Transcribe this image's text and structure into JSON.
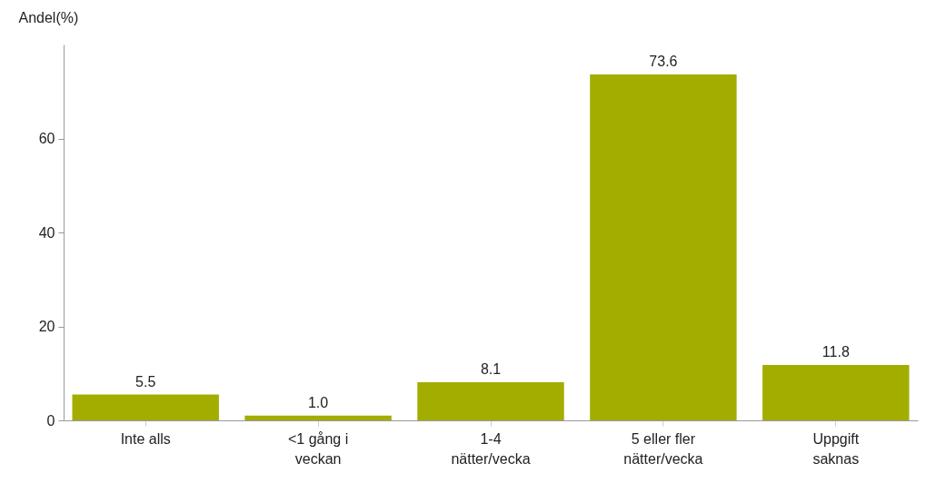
{
  "chart_data": {
    "type": "bar",
    "ylabel": "Andel(%)",
    "categories": [
      "Inte alls",
      "<1 gång i\nveckan",
      "1-4\nnätter/vecka",
      "5 eller fler\nnätter/vecka",
      "Uppgift\nsaknas"
    ],
    "values": [
      5.5,
      1.0,
      8.1,
      73.6,
      11.8
    ],
    "color": "#a2ad00",
    "value_labels": [
      "5.5",
      "1.0",
      "8.1",
      "73.6",
      "11.8"
    ],
    "ylim": [
      0,
      80
    ],
    "yticks": [
      0,
      20,
      40,
      60
    ],
    "grid": false
  }
}
